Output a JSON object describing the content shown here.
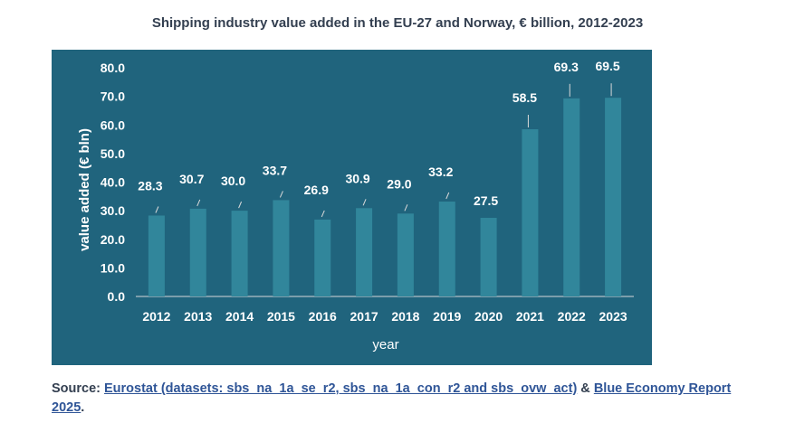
{
  "chart_data": {
    "type": "bar",
    "title": "Shipping industry value added in the EU-27 and Norway, € billion, 2012-2023",
    "xlabel": "year",
    "ylabel": "value added (€ bln)",
    "ylim": [
      0,
      80
    ],
    "yticks": [
      "0.0",
      "10.0",
      "20.0",
      "30.0",
      "40.0",
      "50.0",
      "60.0",
      "70.0",
      "80.0"
    ],
    "categories": [
      "2012",
      "2013",
      "2014",
      "2015",
      "2016",
      "2017",
      "2018",
      "2019",
      "2020",
      "2021",
      "2022",
      "2023"
    ],
    "values": [
      28.3,
      30.7,
      30.0,
      33.7,
      26.9,
      30.9,
      29.0,
      33.2,
      27.5,
      58.5,
      69.3,
      69.5
    ],
    "data_labels": [
      "28.3",
      "30.7",
      "30.0",
      "33.7",
      "26.9",
      "30.9",
      "29.0",
      "33.2",
      "27.5",
      "58.5",
      "69.3",
      "69.5"
    ],
    "grid": false,
    "legend": "none",
    "colors": {
      "background": "#20647d",
      "bar": "#31869b",
      "text": "#ffffff"
    }
  },
  "source": {
    "prefix": "Source: ",
    "link1": "Eurostat (datasets: sbs_na_1a_se_r2, sbs_na_1a_con_r2 and sbs_ovw_act)",
    "middle": " & ",
    "link2": "Blue Economy Report 2025",
    "suffix": "."
  }
}
